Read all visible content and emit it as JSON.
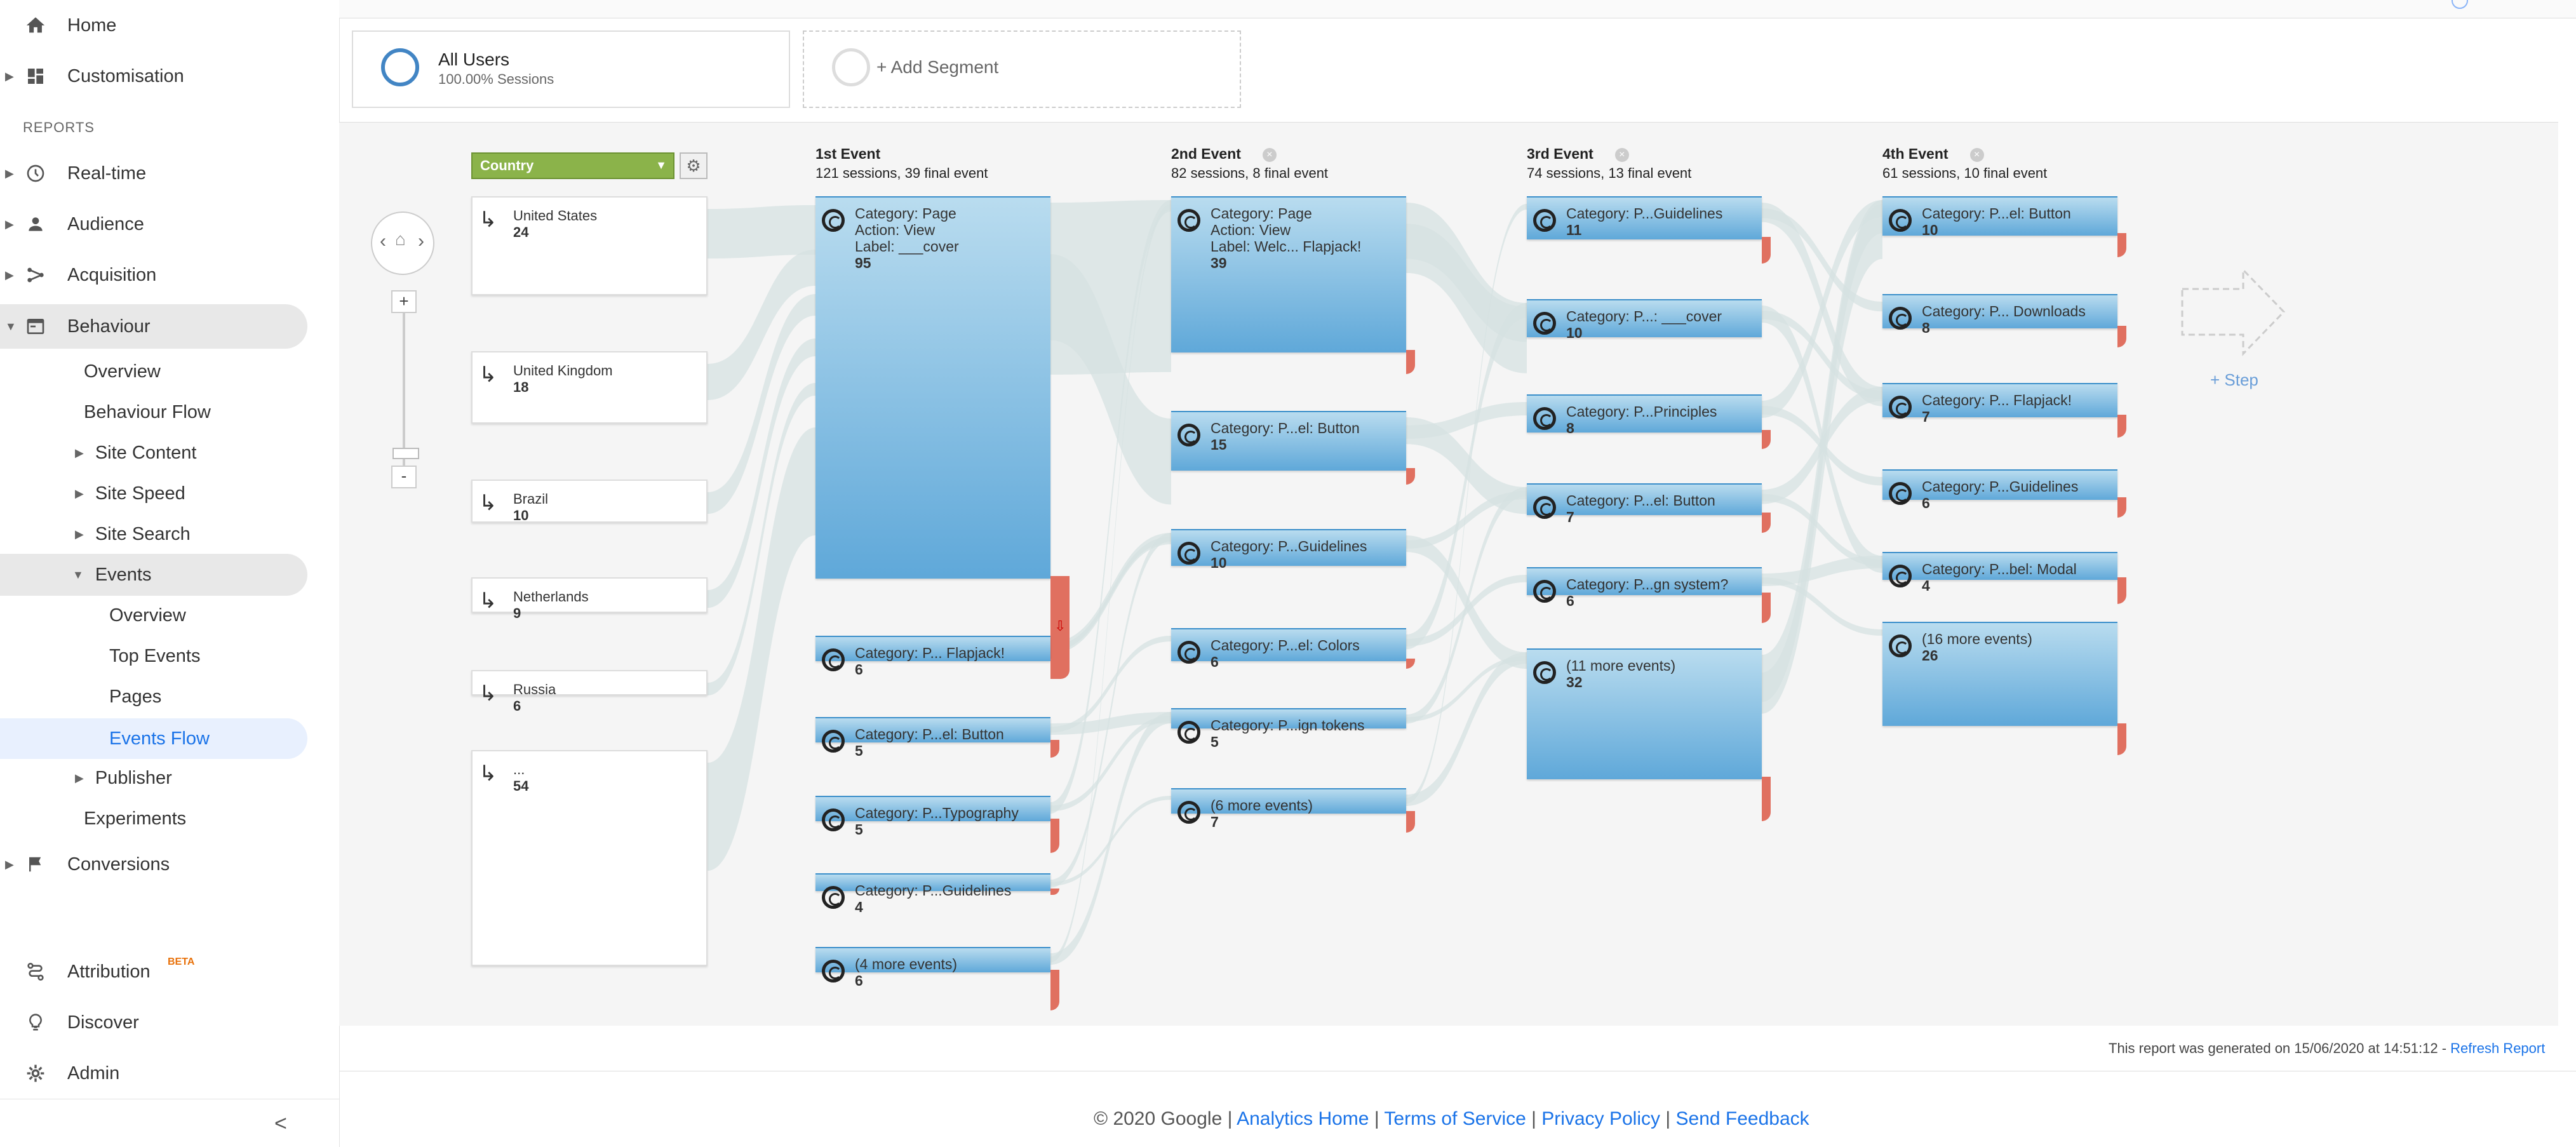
{
  "sidebar": {
    "home": "Home",
    "customisation": "Customisation",
    "reports_label": "REPORTS",
    "realtime": "Real-time",
    "audience": "Audience",
    "acquisition": "Acquisition",
    "behaviour": "Behaviour",
    "overview": "Overview",
    "behaviour_flow": "Behaviour Flow",
    "site_content": "Site Content",
    "site_speed": "Site Speed",
    "site_search": "Site Search",
    "events": "Events",
    "events_overview": "Overview",
    "top_events": "Top Events",
    "pages": "Pages",
    "events_flow": "Events Flow",
    "publisher": "Publisher",
    "experiments": "Experiments",
    "conversions": "Conversions",
    "attribution": "Attribution",
    "beta": "BETA",
    "discover": "Discover",
    "admin": "Admin",
    "collapse": "<"
  },
  "segments": {
    "all_users": "All Users",
    "all_users_sub": "100.00% Sessions",
    "add_segment": "+ Add Segment"
  },
  "flow": {
    "dimension": "Country",
    "add_step": "+ Step",
    "columns": [
      {
        "title": "1st Event",
        "sub": "121 sessions, 39 final event"
      },
      {
        "title": "2nd Event",
        "sub": "82 sessions, 8 final event"
      },
      {
        "title": "3rd Event",
        "sub": "74 sessions, 13 final event"
      },
      {
        "title": "4th Event",
        "sub": "61 sessions, 10 final event"
      }
    ],
    "countries": [
      {
        "name": "United States",
        "count": "24"
      },
      {
        "name": "United Kingdom",
        "count": "18"
      },
      {
        "name": "Brazil",
        "count": "10"
      },
      {
        "name": "Netherlands",
        "count": "9"
      },
      {
        "name": "Russia",
        "count": "6"
      },
      {
        "name": "...",
        "count": "54"
      }
    ],
    "event1": [
      {
        "label": "Category: Page\nAction: View\nLabel: ___cover",
        "count": "95"
      },
      {
        "label": "Category: P... Flapjack!",
        "count": "6"
      },
      {
        "label": "Category: P...el: Button",
        "count": "5"
      },
      {
        "label": "Category: P...Typography",
        "count": "5"
      },
      {
        "label": "Category: P...Guidelines",
        "count": "4"
      },
      {
        "label": "(4 more events)",
        "count": "6"
      }
    ],
    "event2": [
      {
        "label": "Category: Page\nAction: View\nLabel: Welc... Flapjack!",
        "count": "39"
      },
      {
        "label": "Category: P...el: Button",
        "count": "15"
      },
      {
        "label": "Category: P...Guidelines",
        "count": "10"
      },
      {
        "label": "Category: P...el: Colors",
        "count": "6"
      },
      {
        "label": "Category: P...ign tokens",
        "count": "5"
      },
      {
        "label": "(6 more events)",
        "count": "7"
      }
    ],
    "event3": [
      {
        "label": "Category: P...Guidelines",
        "count": "11"
      },
      {
        "label": "Category: P...: ___cover",
        "count": "10"
      },
      {
        "label": "Category: P...Principles",
        "count": "8"
      },
      {
        "label": "Category: P...el: Button",
        "count": "7"
      },
      {
        "label": "Category: P...gn system?",
        "count": "6"
      },
      {
        "label": "(11 more events)",
        "count": "32"
      }
    ],
    "event4": [
      {
        "label": "Category: P...el: Button",
        "count": "10"
      },
      {
        "label": "Category: P... Downloads",
        "count": "8"
      },
      {
        "label": "Category: P... Flapjack!",
        "count": "7"
      },
      {
        "label": "Category: P...Guidelines",
        "count": "6"
      },
      {
        "label": "Category: P...bel: Modal",
        "count": "4"
      },
      {
        "label": "(16 more events)",
        "count": "26"
      }
    ]
  },
  "report": {
    "generated": "This report was generated on 15/06/2020 at 14:51:12 -",
    "refresh": "Refresh Report"
  },
  "footer": {
    "copyright": "© 2020 Google |",
    "analytics_home": "Analytics Home",
    "terms": "Terms of Service",
    "privacy": "Privacy Policy",
    "feedback": "Send Feedback",
    "sep": "|"
  },
  "colors": {
    "accent": "#1a73e8",
    "node": "#5fa8d9",
    "drop": "#e07060",
    "dimension": "#8bb34a"
  }
}
